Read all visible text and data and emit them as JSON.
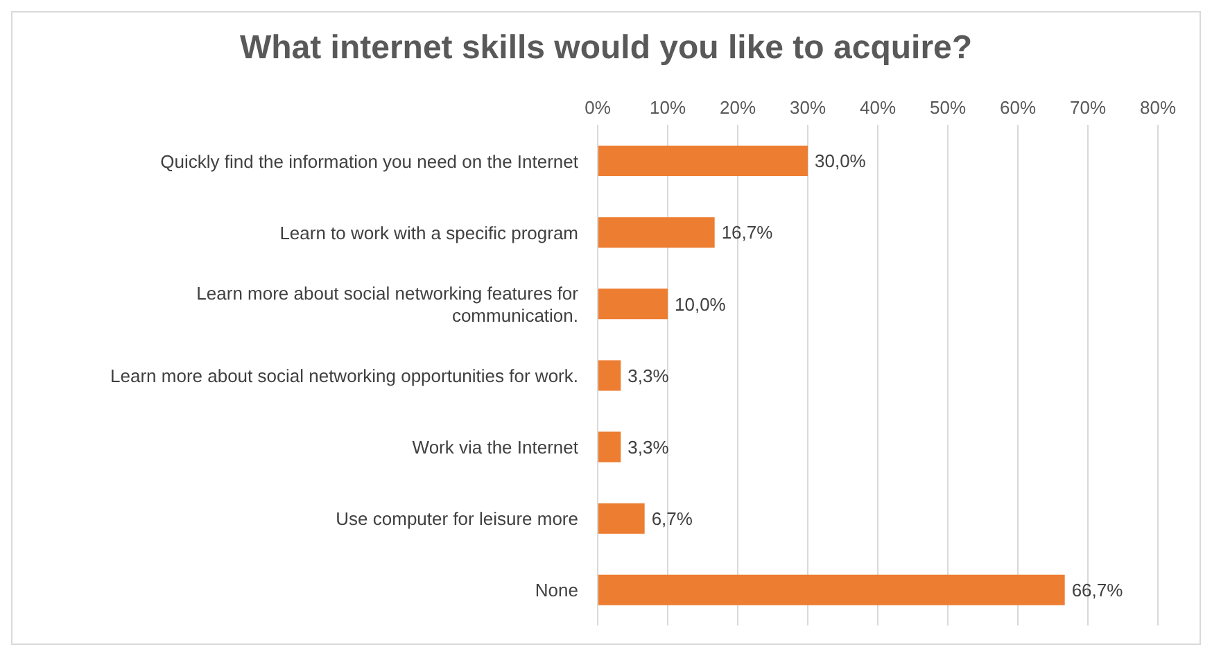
{
  "chart_data": {
    "type": "bar",
    "orientation": "horizontal",
    "title": "What internet skills would you like to acquire?",
    "categories": [
      "Quickly find the information you need on the Internet",
      "Learn to work with a specific program",
      "Learn more about social networking features for communication.",
      "Learn more about social networking opportunities for work.",
      "Work via the Internet",
      "Use computer for leisure more",
      "None"
    ],
    "values": [
      30,
      16.7,
      10,
      3.3,
      3.3,
      6.7,
      66.7
    ],
    "value_labels": [
      "30,0%",
      "16,7%",
      "10,0%",
      "3,3%",
      "3,3%",
      "6,7%",
      "66,7%"
    ],
    "color": "#ed7d31",
    "xlim": [
      0,
      80
    ],
    "xticks": [
      {
        "value": 0,
        "label": "0%"
      },
      {
        "value": 10,
        "label": "10%"
      },
      {
        "value": 20,
        "label": "20%"
      },
      {
        "value": 30,
        "label": "30%"
      },
      {
        "value": 40,
        "label": "40%"
      },
      {
        "value": 50,
        "label": "50%"
      },
      {
        "value": 60,
        "label": "60%"
      },
      {
        "value": 70,
        "label": "70%"
      },
      {
        "value": 80,
        "label": "80%"
      }
    ],
    "grid": "x",
    "legend": false
  }
}
